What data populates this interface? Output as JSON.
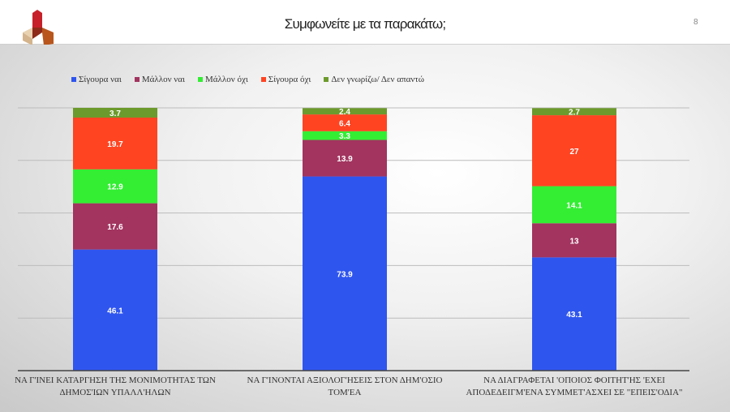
{
  "header": {
    "title": "Συμφωνείτε με τα παρακάτω;",
    "page_number": "8",
    "logo": "cube-logo"
  },
  "chart_data": {
    "type": "bar",
    "stacked": true,
    "title": "",
    "categories": [
      "ΝΑ Γ'ΙΝΕΙ ΚΑΤΑΡΓΗΣΗ ΤΗΣ ΜΟΝΙΜΟΤΗΤΑΣ ΤΩΝ ΔΗΜΟΣ'ΙΩΝ ΥΠΑΛΛ'ΗΛΩΝ",
      "ΝΑ Γ'ΙΝΟΝΤΑΙ ΑΞΙΟΛΟΓ'ΗΣΕΙΣ ΣΤΟΝ ΔΗΜ'ΟΣΙΟ ΤΟΜ'ΕΑ",
      "ΝΑ ΔΙΑΓΡΑΦΕΤΑΙ 'ΟΠΟΙΟΣ ΦΟΙΤΗΤ'ΗΣ 'ΕΧΕΙ ΑΠΟΔΕΔΕΙΓΜ'ΕΝΑ ΣΥΜΜΕΤ'ΑΣΧΕΙ ΣΕ \"ΕΠΕΙΣ'ΟΔΙΑ\""
    ],
    "series": [
      {
        "name": "Σίγουρα ναι",
        "color": "#2f55ef",
        "values": [
          46.1,
          73.9,
          43.1
        ]
      },
      {
        "name": "Μάλλον ναι",
        "color": "#a2345f",
        "values": [
          17.6,
          13.9,
          13
        ]
      },
      {
        "name": "Μάλλον όχι",
        "color": "#33ee33",
        "values": [
          12.9,
          3.3,
          14.1
        ]
      },
      {
        "name": "Σίγουρα όχι",
        "color": "#ff4422",
        "values": [
          19.7,
          6.4,
          27
        ]
      },
      {
        "name": "Δεν γνωρίζω/ Δεν απαντώ",
        "color": "#6c9a2c",
        "values": [
          3.7,
          2.4,
          2.7
        ]
      }
    ],
    "ylim": [
      0,
      100
    ],
    "grid": true,
    "legend_position": "top-left"
  }
}
